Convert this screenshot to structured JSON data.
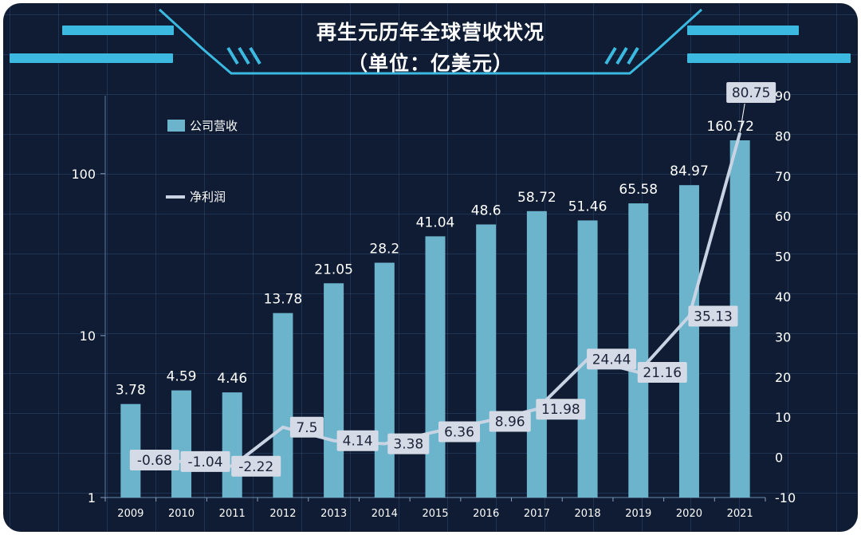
{
  "chart_data": {
    "type": "bar+line",
    "title": "再生元历年全球营收状况",
    "subtitle": "（单位：亿美元）",
    "categories": [
      "2009",
      "2010",
      "2011",
      "2012",
      "2013",
      "2014",
      "2015",
      "2016",
      "2017",
      "2018",
      "2019",
      "2020",
      "2021"
    ],
    "series": [
      {
        "name": "公司营收",
        "type": "bar",
        "axis": "left",
        "values": [
          3.78,
          4.59,
          4.46,
          13.78,
          21.05,
          28.2,
          41.04,
          48.6,
          58.72,
          51.46,
          65.58,
          84.97,
          160.72
        ],
        "labels": [
          "3.78",
          "4.59",
          "4.46",
          "13.78",
          "21.05",
          "28.2",
          "41.04",
          "48.6",
          "58.72",
          "51.46",
          "65.58",
          "84.97",
          "160.72"
        ],
        "color": "#6cb4cc"
      },
      {
        "name": "净利润",
        "type": "line",
        "axis": "right",
        "values": [
          -0.68,
          -1.04,
          -2.22,
          7.5,
          4.14,
          3.38,
          6.36,
          8.96,
          11.98,
          24.44,
          21.16,
          35.13,
          80.75
        ],
        "labels": [
          "-0.68",
          "-1.04",
          "-2.22",
          "7.5",
          "4.14",
          "3.38",
          "6.36",
          "8.96",
          "11.98",
          "24.44",
          "21.16",
          "35.13",
          "80.75"
        ],
        "color": "#c8d4e4"
      }
    ],
    "y_left": {
      "scale": "log",
      "range": [
        1,
        160.72
      ],
      "ticks": [
        "1",
        "10",
        "100"
      ]
    },
    "y_right": {
      "scale": "linear",
      "range": [
        -10,
        90
      ],
      "ticks": [
        "-10",
        "0",
        "10",
        "20",
        "30",
        "40",
        "50",
        "60",
        "70",
        "80",
        "90"
      ]
    },
    "legend_position": "top-left",
    "grid": true
  }
}
